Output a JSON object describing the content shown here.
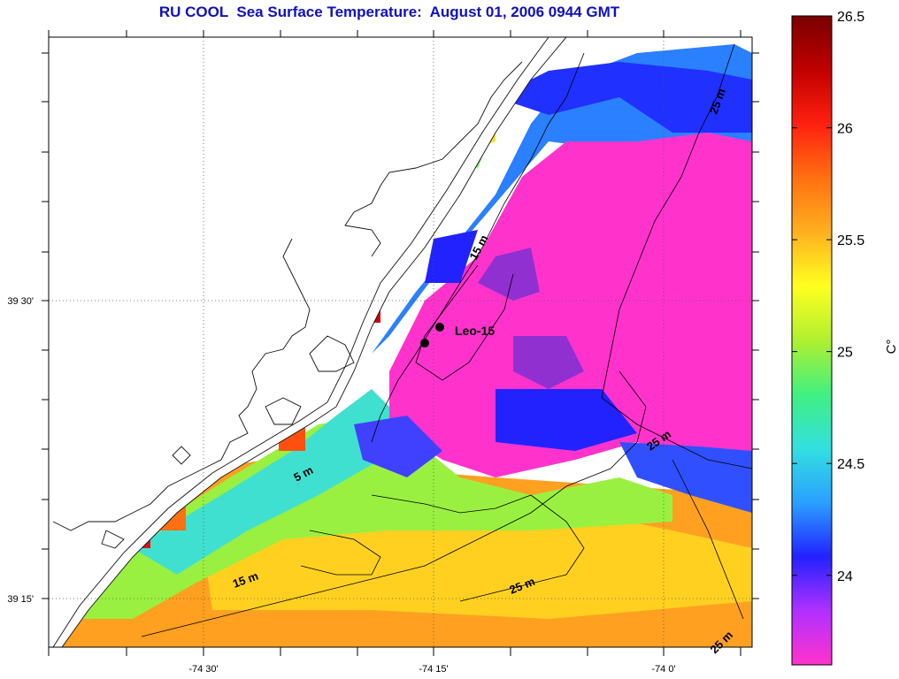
{
  "title": "RU COOL  Sea Surface Temperature:  August 01, 2006 0944 GMT",
  "map": {
    "lon_labels": [
      "-74 30'",
      "-74 15'",
      "-74 0'"
    ],
    "lat_labels": [
      "39 30'",
      "39 15'"
    ],
    "station_label": "Leo-15",
    "isobath_labels": [
      "5 m",
      "15 m",
      "15 m",
      "25 m",
      "25 m",
      "25 m",
      "25 m"
    ]
  },
  "colorbar": {
    "unit": "C°",
    "tick_labels": [
      "26.5",
      "26",
      "25.5",
      "25",
      "24.5",
      "24"
    ],
    "min": 23.6,
    "max": 26.5,
    "colors": [
      "#ff33cc",
      "#b030ff",
      "#2222ff",
      "#2aa0ff",
      "#33e0e0",
      "#40f080",
      "#b0f030",
      "#ffff20",
      "#ffb020",
      "#ff7010",
      "#ff2010",
      "#c00000",
      "#7a0000"
    ]
  }
}
